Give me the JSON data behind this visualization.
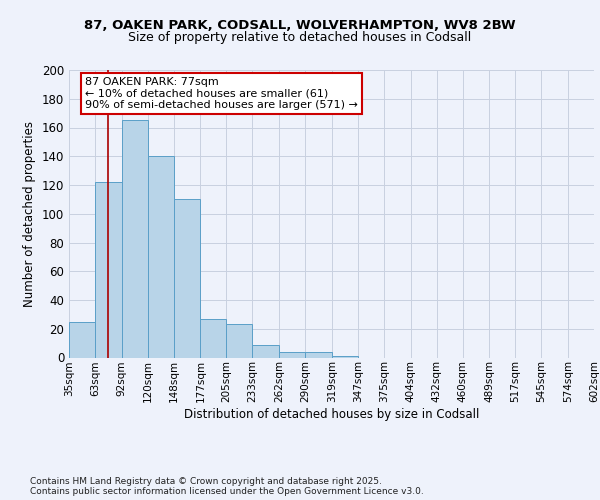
{
  "title1": "87, OAKEN PARK, CODSALL, WOLVERHAMPTON, WV8 2BW",
  "title2": "Size of property relative to detached houses in Codsall",
  "xlabel": "Distribution of detached houses by size in Codsall",
  "ylabel": "Number of detached properties",
  "bin_labels": [
    "35sqm",
    "63sqm",
    "92sqm",
    "120sqm",
    "148sqm",
    "177sqm",
    "205sqm",
    "233sqm",
    "262sqm",
    "290sqm",
    "319sqm",
    "347sqm",
    "375sqm",
    "404sqm",
    "432sqm",
    "460sqm",
    "489sqm",
    "517sqm",
    "545sqm",
    "574sqm",
    "602sqm"
  ],
  "bin_edges": [
    35,
    63,
    92,
    120,
    148,
    177,
    205,
    233,
    262,
    290,
    319,
    347,
    375,
    404,
    432,
    460,
    489,
    517,
    545,
    574,
    602
  ],
  "bar_heights": [
    25,
    122,
    165,
    140,
    110,
    27,
    23,
    9,
    4,
    4,
    1,
    0,
    0,
    0,
    0,
    0,
    0,
    0,
    0,
    0,
    1
  ],
  "bar_color": "#b8d4e8",
  "bar_edge_color": "#5a9fc8",
  "property_line_x": 77,
  "property_line_color": "#aa0000",
  "annotation_text": "87 OAKEN PARK: 77sqm\n← 10% of detached houses are smaller (61)\n90% of semi-detached houses are larger (571) →",
  "annotation_box_color": "#ffffff",
  "annotation_box_edge_color": "#cc0000",
  "ylim": [
    0,
    200
  ],
  "yticks": [
    0,
    20,
    40,
    60,
    80,
    100,
    120,
    140,
    160,
    180,
    200
  ],
  "footer_text": "Contains HM Land Registry data © Crown copyright and database right 2025.\nContains public sector information licensed under the Open Government Licence v3.0.",
  "bg_color": "#eef2fb",
  "grid_color": "#c8d0e0"
}
